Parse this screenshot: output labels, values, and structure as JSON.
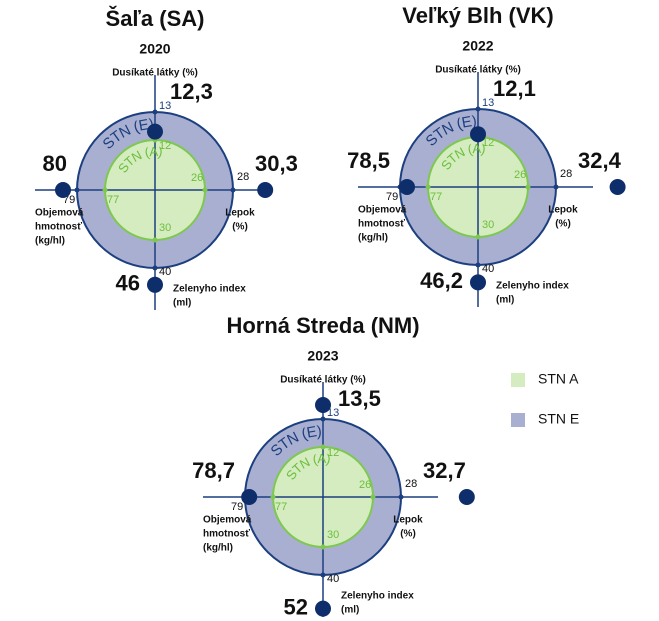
{
  "chart_data": [
    {
      "type": "cross",
      "title": "Šaľa (SA)",
      "subtitle": "2020",
      "ring_labels": [
        "STN (E)",
        "STN (A)"
      ],
      "axes": [
        {
          "label": [
            "Dusíkaté látky (%)"
          ],
          "inner": 12,
          "outer": 13,
          "value": 12.3,
          "value_label": "12,3"
        },
        {
          "label": [
            "Lepok",
            "(%)"
          ],
          "inner": 26,
          "outer": 28,
          "value": 30.3,
          "value_label": "30,3"
        },
        {
          "label": [
            "Zelenyho index",
            "(ml)"
          ],
          "inner": 30,
          "outer": 40,
          "value": 46,
          "value_label": "46"
        },
        {
          "label": [
            "Objemová",
            "hmotnosť",
            "(kg/hl)"
          ],
          "inner": 77,
          "outer": 79,
          "value": 80,
          "value_label": "80"
        }
      ]
    },
    {
      "type": "cross",
      "title": "Veľký Blh (VK)",
      "subtitle": "2022",
      "ring_labels": [
        "STN (E)",
        "STN (A)"
      ],
      "axes": [
        {
          "label": [
            "Dusíkaté látky (%)"
          ],
          "inner": 12,
          "outer": 13,
          "value": 12.1,
          "value_label": "12,1"
        },
        {
          "label": [
            "Lepok",
            "(%)"
          ],
          "inner": 26,
          "outer": 28,
          "value": 32.4,
          "value_label": "32,4"
        },
        {
          "label": [
            "Zelenyho index",
            "(ml)"
          ],
          "inner": 30,
          "outer": 40,
          "value": 46.2,
          "value_label": "46,2"
        },
        {
          "label": [
            "Objemová",
            "hmotnosť",
            "(kg/hl)"
          ],
          "inner": 77,
          "outer": 79,
          "value": 78.5,
          "value_label": "78,5"
        }
      ]
    },
    {
      "type": "cross",
      "title": "Horná Streda (NM)",
      "subtitle": "2023",
      "ring_labels": [
        "STN (E)",
        "STN (A)"
      ],
      "axes": [
        {
          "label": [
            "Dusíkaté látky (%)"
          ],
          "inner": 12,
          "outer": 13,
          "value": 13.5,
          "value_label": "13,5"
        },
        {
          "label": [
            "Lepok",
            "(%)"
          ],
          "inner": 26,
          "outer": 28,
          "value": 32.7,
          "value_label": "32,7"
        },
        {
          "label": [
            "Zelenyho index",
            "(ml)"
          ],
          "inner": 30,
          "outer": 40,
          "value": 52,
          "value_label": "52"
        },
        {
          "label": [
            "Objemová",
            "hmotnosť",
            "(kg/hl)"
          ],
          "inner": 77,
          "outer": 79,
          "value": 78.7,
          "value_label": "78,7"
        }
      ]
    }
  ],
  "legend": [
    {
      "name": "STN A",
      "color": "#d4ecc0"
    },
    {
      "name": "STN E",
      "color": "#a9afd0"
    }
  ]
}
